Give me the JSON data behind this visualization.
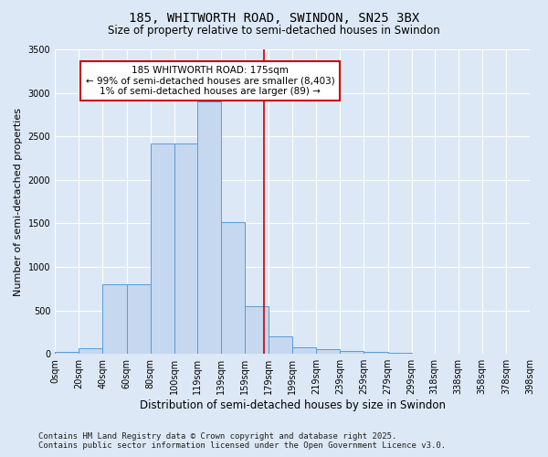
{
  "title": "185, WHITWORTH ROAD, SWINDON, SN25 3BX",
  "subtitle": "Size of property relative to semi-detached houses in Swindon",
  "xlabel": "Distribution of semi-detached houses by size in Swindon",
  "ylabel": "Number of semi-detached properties",
  "annotation_line1": "185 WHITWORTH ROAD: 175sqm",
  "annotation_line2": "← 99% of semi-detached houses are smaller (8,403)",
  "annotation_line3": "1% of semi-detached houses are larger (89) →",
  "footer_line1": "Contains HM Land Registry data © Crown copyright and database right 2025.",
  "footer_line2": "Contains public sector information licensed under the Open Government Licence v3.0.",
  "bin_edges": [
    0,
    20,
    40,
    60,
    80,
    100,
    119,
    139,
    159,
    179,
    199,
    219,
    239,
    259,
    279,
    299,
    318,
    338,
    358,
    378,
    398
  ],
  "bin_labels": [
    "0sqm",
    "20sqm",
    "40sqm",
    "60sqm",
    "80sqm",
    "100sqm",
    "119sqm",
    "139sqm",
    "159sqm",
    "179sqm",
    "199sqm",
    "219sqm",
    "239sqm",
    "259sqm",
    "279sqm",
    "299sqm",
    "318sqm",
    "338sqm",
    "358sqm",
    "378sqm",
    "398sqm"
  ],
  "bar_heights": [
    20,
    60,
    800,
    800,
    2420,
    2420,
    2900,
    1520,
    550,
    200,
    80,
    50,
    30,
    20,
    10,
    5,
    3,
    2,
    1,
    1
  ],
  "bar_color": "#c5d8ef",
  "bar_edge_color": "#5b9bd5",
  "vline_x": 175,
  "vline_color": "#cc0000",
  "ylim": [
    0,
    3500
  ],
  "yticks": [
    0,
    500,
    1000,
    1500,
    2000,
    2500,
    3000,
    3500
  ],
  "bg_color": "#dce8f5",
  "annotation_box_color": "#cc0000",
  "title_fontsize": 10,
  "subtitle_fontsize": 8.5,
  "ylabel_fontsize": 8,
  "xlabel_fontsize": 8.5,
  "tick_fontsize": 7,
  "annotation_fontsize": 7.5,
  "footer_fontsize": 6.5
}
